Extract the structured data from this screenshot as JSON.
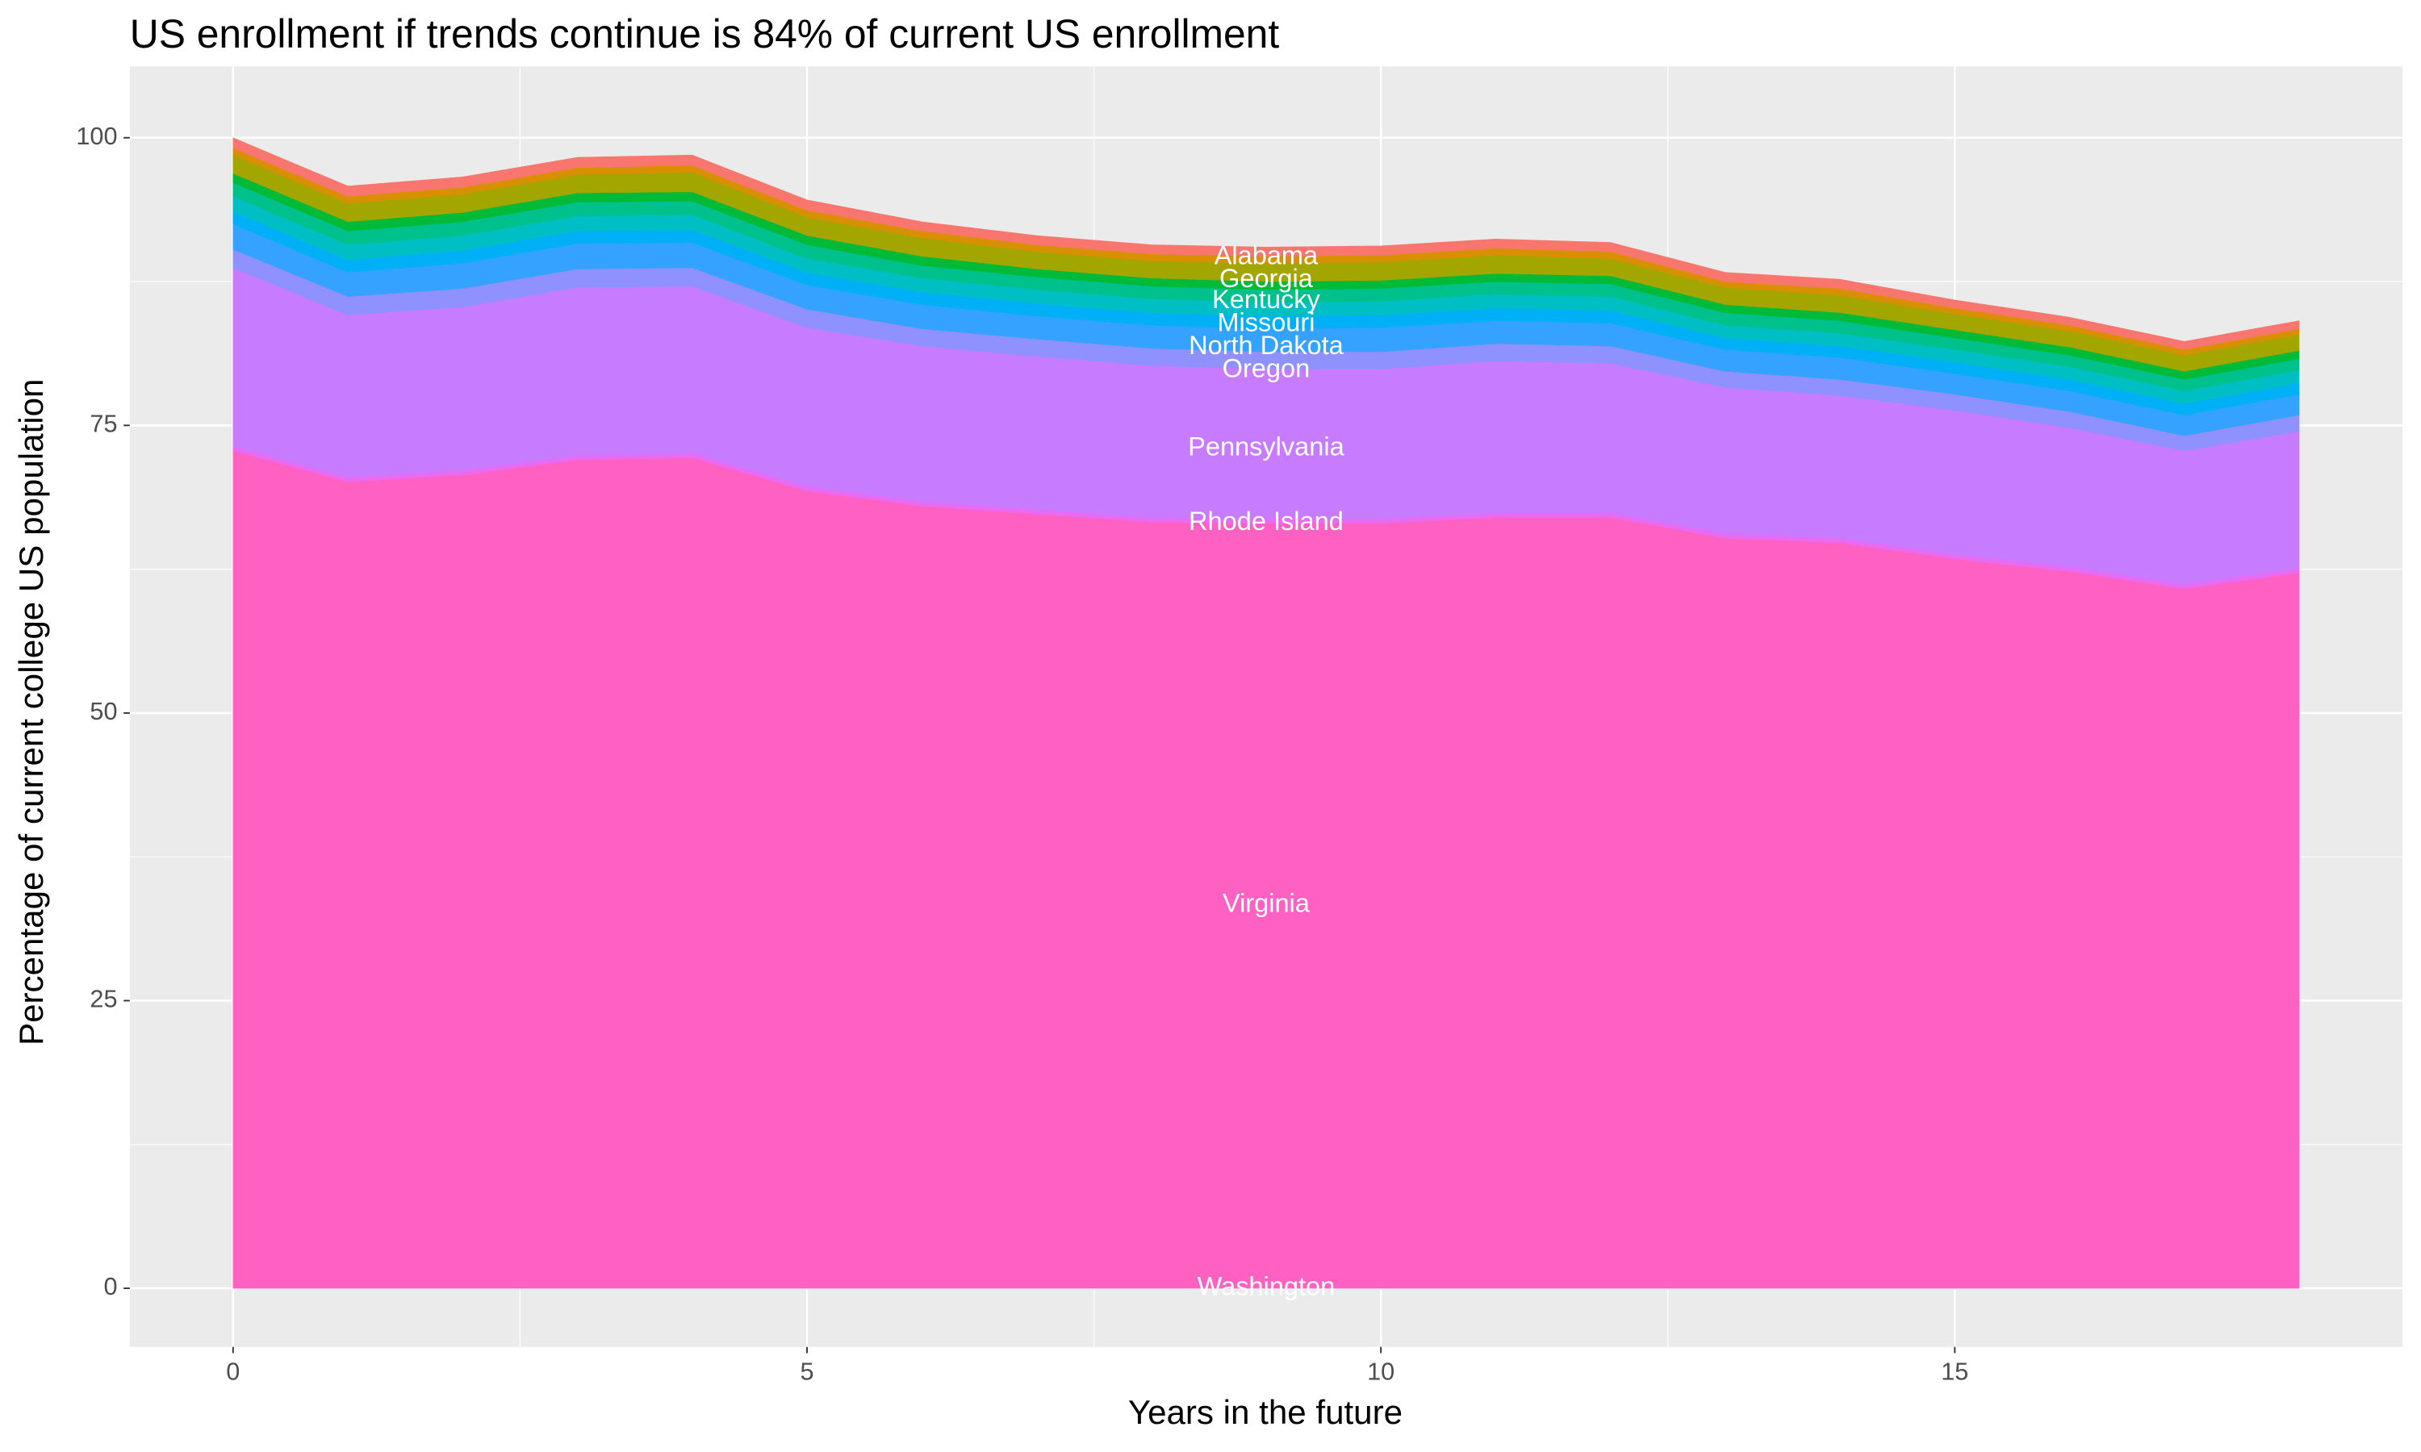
{
  "chart_data": {
    "type": "stacked_area",
    "title": "US enrollment if trends continue is 84% of current US enrollment",
    "x_label": "Years in the future",
    "y_label": "Percentage of current college US population",
    "x": [
      0,
      1,
      2,
      3,
      4,
      5,
      6,
      7,
      8,
      9,
      10,
      11,
      12,
      13,
      14,
      15,
      16,
      17,
      18
    ],
    "series": [
      {
        "color": "#ff61c3",
        "values": [
          72.8,
          70.1,
          70.7,
          72.0,
          72.2,
          69.3,
          68.0,
          67.3,
          66.6,
          66.5,
          66.5,
          67.0,
          67.0,
          65.2,
          64.8,
          63.4,
          62.3,
          60.8,
          62.2
        ]
      },
      {
        "color": "#e76bf3",
        "values": [
          0.4,
          0.4,
          0.4,
          0.4,
          0.4,
          0.4,
          0.4,
          0.4,
          0.4,
          0.4,
          0.4,
          0.4,
          0.4,
          0.4,
          0.4,
          0.4,
          0.4,
          0.4,
          0.4
        ]
      },
      {
        "color": "#c77cff",
        "values": [
          15.5,
          14.1,
          14.2,
          14.6,
          14.5,
          13.8,
          13.5,
          13.3,
          13.2,
          13.0,
          13.0,
          13.2,
          13.0,
          12.7,
          12.4,
          12.5,
          12.1,
          11.6,
          11.9
        ]
      },
      {
        "color": "#8f91ff",
        "values": [
          1.6,
          1.6,
          1.6,
          1.6,
          1.6,
          1.6,
          1.5,
          1.5,
          1.5,
          1.5,
          1.5,
          1.5,
          1.5,
          1.4,
          1.4,
          1.4,
          1.4,
          1.3,
          1.4
        ]
      },
      {
        "color": "#35a2ff",
        "values": [
          2.2,
          2.1,
          2.2,
          2.2,
          2.2,
          2.1,
          2.1,
          2.0,
          2.0,
          2.0,
          2.1,
          2.0,
          2.0,
          1.9,
          1.9,
          1.8,
          1.8,
          1.8,
          1.8
        ]
      },
      {
        "color": "#00b0f6",
        "values": [
          1.1,
          1.1,
          1.1,
          1.1,
          1.1,
          1.1,
          1.1,
          1.1,
          1.1,
          1.1,
          1.1,
          1.1,
          1.1,
          1.0,
          1.0,
          1.0,
          1.0,
          1.0,
          1.0
        ]
      },
      {
        "color": "#00bfc4",
        "values": [
          1.3,
          1.3,
          1.3,
          1.3,
          1.3,
          1.2,
          1.2,
          1.2,
          1.2,
          1.2,
          1.2,
          1.2,
          1.2,
          1.1,
          1.1,
          1.1,
          1.1,
          1.1,
          1.1
        ]
      },
      {
        "color": "#00c08b",
        "values": [
          1.2,
          1.2,
          1.2,
          1.2,
          1.2,
          1.2,
          1.1,
          1.1,
          1.1,
          1.1,
          1.1,
          1.1,
          1.1,
          1.1,
          1.1,
          1.0,
          1.0,
          1.0,
          1.0
        ]
      },
      {
        "color": "#00ba38",
        "values": [
          0.8,
          0.8,
          0.8,
          0.8,
          0.8,
          0.8,
          0.8,
          0.7,
          0.7,
          0.7,
          0.7,
          0.7,
          0.7,
          0.7,
          0.7,
          0.7,
          0.7,
          0.7,
          0.7
        ]
      },
      {
        "color": "#a3a500",
        "values": [
          1.6,
          1.6,
          1.6,
          1.6,
          1.7,
          1.6,
          1.6,
          1.5,
          1.5,
          1.6,
          1.6,
          1.6,
          1.5,
          1.5,
          1.5,
          1.4,
          1.4,
          1.4,
          1.4
        ]
      },
      {
        "color": "#d89000",
        "values": [
          0.6,
          0.6,
          0.6,
          0.6,
          0.6,
          0.6,
          0.6,
          0.6,
          0.6,
          0.6,
          0.6,
          0.6,
          0.6,
          0.5,
          0.6,
          0.5,
          0.5,
          0.5,
          0.5
        ]
      },
      {
        "color": "#f8766d",
        "values": [
          0.9,
          0.9,
          0.9,
          0.9,
          0.9,
          0.9,
          0.8,
          0.8,
          0.8,
          0.8,
          0.8,
          0.8,
          0.8,
          0.8,
          0.8,
          0.7,
          0.7,
          0.7,
          0.7
        ]
      }
    ],
    "annotations": [
      {
        "text": "Alabama",
        "x": 9,
        "y": 89.6
      },
      {
        "text": "Georgia",
        "x": 9,
        "y": 87.6
      },
      {
        "text": "Kentucky",
        "x": 9,
        "y": 85.8
      },
      {
        "text": "Missouri",
        "x": 9,
        "y": 83.8
      },
      {
        "text": "North Dakota",
        "x": 9,
        "y": 81.8
      },
      {
        "text": "Oregon",
        "x": 9,
        "y": 79.8
      },
      {
        "text": "Pennsylvania",
        "x": 9,
        "y": 73.0
      },
      {
        "text": "Rhode Island",
        "x": 9,
        "y": 66.5
      },
      {
        "text": "Virginia",
        "x": 9,
        "y": 33.3
      },
      {
        "text": "Washington",
        "x": 9,
        "y": 0
      }
    ],
    "xlim": [
      -0.9,
      18.9
    ],
    "ylim": [
      -5.1,
      106.2
    ],
    "xticks": [
      0,
      5,
      10,
      15
    ],
    "yticks": [
      0,
      25,
      50,
      75,
      100
    ],
    "grid": true
  }
}
